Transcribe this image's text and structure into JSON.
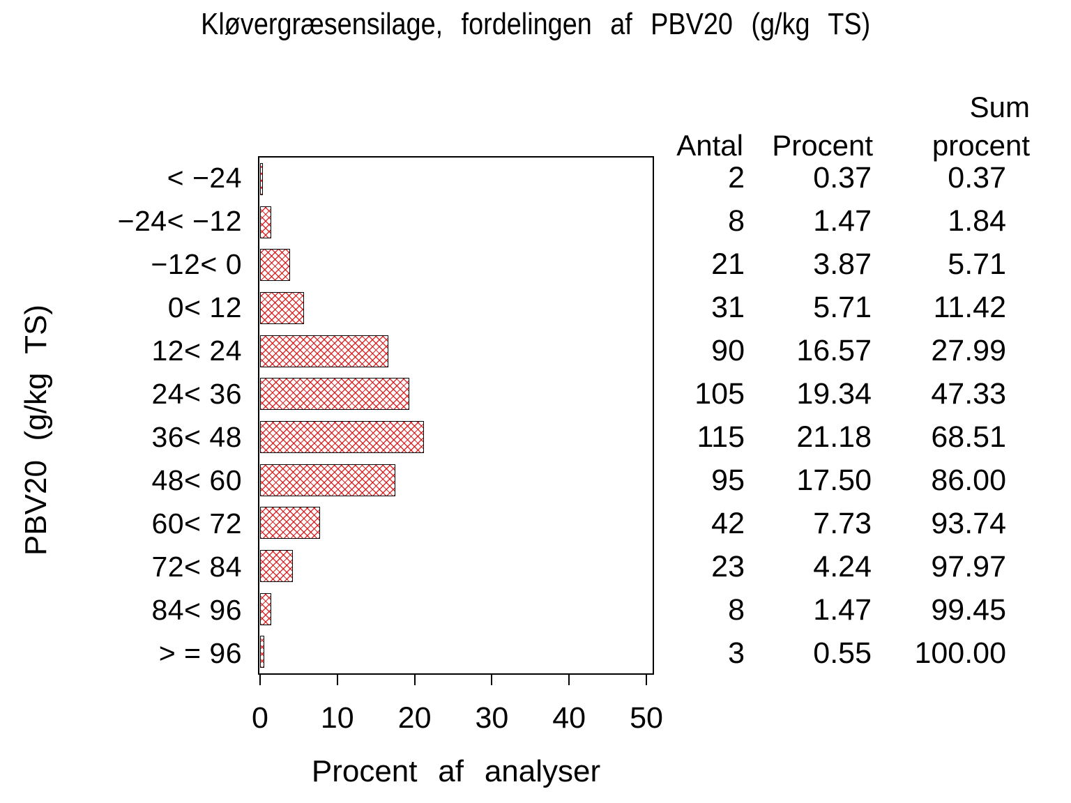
{
  "title": "Kløvergræsensilage, fordelingen af PBV20 (g/kg TS)",
  "chart_data": {
    "type": "bar",
    "orientation": "horizontal",
    "title": "Kløvergræsensilage, fordelingen af PBV20 (g/kg TS)",
    "xlabel": "Procent af analyser",
    "ylabel": "PBV20 (g/kg TS)",
    "xlim": [
      0,
      50
    ],
    "xticks": [
      "0",
      "10",
      "20",
      "30",
      "40",
      "50"
    ],
    "grid": false,
    "legend": "none",
    "categories": [
      "< −24",
      "−24< −12",
      "−12< 0",
      "0< 12",
      "12< 24",
      "24< 36",
      "36< 48",
      "48< 60",
      "60< 72",
      "72< 84",
      "84< 96",
      "> = 96"
    ],
    "values": [
      0.37,
      1.47,
      3.87,
      5.71,
      16.57,
      19.34,
      21.18,
      17.5,
      7.73,
      4.24,
      1.47,
      0.55
    ],
    "bar_style": {
      "pattern": "red diagonal crosshatch",
      "hatch_color": "#d81010",
      "fill": "#ffffff",
      "border_color": "#000000"
    }
  },
  "table": {
    "col_headers": {
      "antal": "Antal",
      "procent": "Procent",
      "sum_line1": "Sum",
      "sum_line2": "procent"
    },
    "rows": [
      {
        "antal": "2",
        "procent": "0.37",
        "sum": "0.37"
      },
      {
        "antal": "8",
        "procent": "1.47",
        "sum": "1.84"
      },
      {
        "antal": "21",
        "procent": "3.87",
        "sum": "5.71"
      },
      {
        "antal": "31",
        "procent": "5.71",
        "sum": "11.42"
      },
      {
        "antal": "90",
        "procent": "16.57",
        "sum": "27.99"
      },
      {
        "antal": "105",
        "procent": "19.34",
        "sum": "47.33"
      },
      {
        "antal": "115",
        "procent": "21.18",
        "sum": "68.51"
      },
      {
        "antal": "95",
        "procent": "17.50",
        "sum": "86.00"
      },
      {
        "antal": "42",
        "procent": "7.73",
        "sum": "93.74"
      },
      {
        "antal": "23",
        "procent": "4.24",
        "sum": "97.97"
      },
      {
        "antal": "8",
        "procent": "1.47",
        "sum": "99.45"
      },
      {
        "antal": "3",
        "procent": "0.55",
        "sum": "100.00"
      }
    ]
  }
}
